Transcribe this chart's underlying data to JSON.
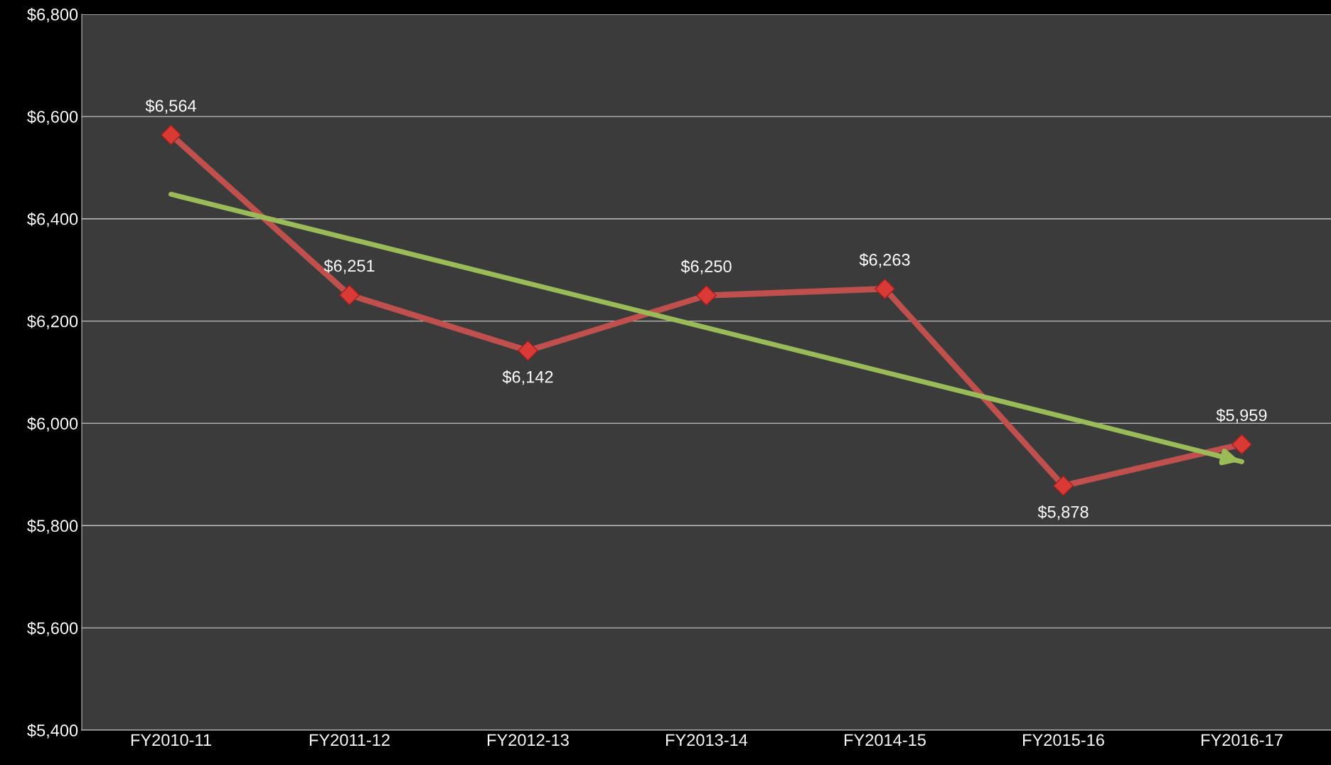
{
  "chart_data": {
    "type": "line",
    "categories": [
      "FY2010-11",
      "FY2011-12",
      "FY2012-13",
      "FY2013-14",
      "FY2014-15",
      "FY2015-16",
      "FY2016-17"
    ],
    "series": [
      {
        "color": "#c0504d",
        "values": [
          6564,
          6251,
          6142,
          6250,
          6263,
          5878,
          5959
        ],
        "marker": "diamond",
        "value_labels": [
          "$6,564",
          "$6,251",
          "$6,142",
          "$6,250",
          "$6,263",
          "$5,878",
          "$5,959"
        ]
      },
      {
        "type": "line",
        "color": "#9bbb59",
        "values": [
          6448,
          6361,
          6274,
          6187,
          6100,
          6013,
          5925
        ],
        "marker": "none"
      }
    ],
    "ylim": [
      5400,
      6800
    ],
    "yticks": [
      {
        "value": 5400,
        "label": "$5,400"
      },
      {
        "value": 5600,
        "label": "$5,600"
      },
      {
        "value": 5800,
        "label": "$5,800"
      },
      {
        "value": 6000,
        "label": "$6,000"
      },
      {
        "value": 6200,
        "label": "$6,200"
      },
      {
        "value": 6400,
        "label": "$6,400"
      },
      {
        "value": 6600,
        "label": "$6,600"
      },
      {
        "value": 6800,
        "label": "$6,800"
      }
    ],
    "grid": "y",
    "legend": false
  }
}
